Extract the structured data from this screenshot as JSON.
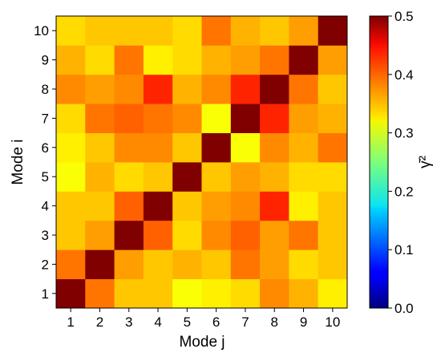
{
  "chart_data": {
    "type": "heatmap",
    "title": "",
    "xlabel": "Mode j",
    "ylabel": "Mode i",
    "x_categories": [
      "1",
      "2",
      "3",
      "4",
      "5",
      "6",
      "7",
      "8",
      "9",
      "10"
    ],
    "y_categories": [
      "1",
      "2",
      "3",
      "4",
      "5",
      "6",
      "7",
      "8",
      "9",
      "10"
    ],
    "colorscale": "jet",
    "colorbar": {
      "label": "γ̄²",
      "range": [
        0.0,
        0.5
      ],
      "ticks": [
        "0.0",
        "0.1",
        "0.2",
        "0.3",
        "0.4",
        "0.5"
      ]
    },
    "grid": false,
    "values": [
      [
        0.5,
        0.38,
        0.34,
        0.34,
        0.31,
        0.32,
        0.33,
        0.37,
        0.35,
        0.32
      ],
      [
        0.38,
        0.5,
        0.36,
        0.34,
        0.35,
        0.34,
        0.38,
        0.36,
        0.33,
        0.34
      ],
      [
        0.34,
        0.36,
        0.5,
        0.39,
        0.33,
        0.37,
        0.39,
        0.36,
        0.38,
        0.34
      ],
      [
        0.34,
        0.34,
        0.39,
        0.5,
        0.34,
        0.36,
        0.37,
        0.42,
        0.32,
        0.34
      ],
      [
        0.31,
        0.35,
        0.33,
        0.34,
        0.5,
        0.34,
        0.36,
        0.35,
        0.33,
        0.33
      ],
      [
        0.32,
        0.34,
        0.37,
        0.37,
        0.34,
        0.5,
        0.31,
        0.37,
        0.35,
        0.38
      ],
      [
        0.33,
        0.38,
        0.39,
        0.38,
        0.37,
        0.31,
        0.5,
        0.42,
        0.36,
        0.35
      ],
      [
        0.37,
        0.36,
        0.37,
        0.42,
        0.35,
        0.37,
        0.42,
        0.5,
        0.38,
        0.34
      ],
      [
        0.35,
        0.33,
        0.38,
        0.32,
        0.33,
        0.35,
        0.36,
        0.38,
        0.5,
        0.36
      ],
      [
        0.33,
        0.34,
        0.34,
        0.34,
        0.33,
        0.38,
        0.35,
        0.34,
        0.36,
        0.5
      ]
    ]
  }
}
